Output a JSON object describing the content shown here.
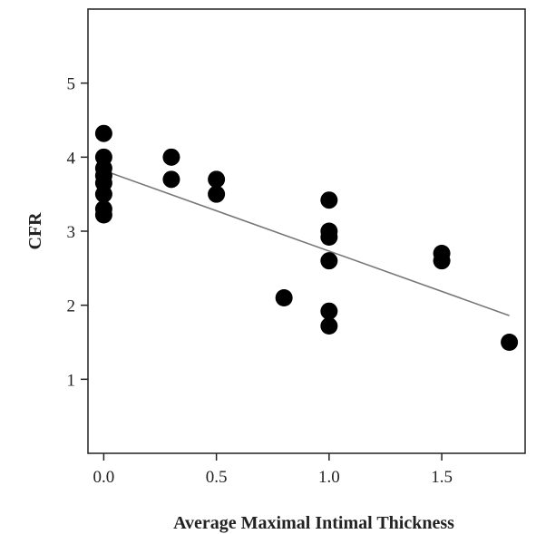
{
  "chart_data": {
    "type": "scatter",
    "title": "",
    "xlabel": "Average Maximal Intimal Thickness",
    "ylabel": "CFR",
    "xlim": [
      -0.07,
      1.87
    ],
    "ylim": [
      0,
      6
    ],
    "xticks": [
      0.0,
      0.5,
      1.0,
      1.5
    ],
    "xtick_labels": [
      "0.0",
      "0.5",
      "1.0",
      "1.5"
    ],
    "yticks": [
      1,
      2,
      3,
      4,
      5
    ],
    "ytick_labels": [
      "1",
      "2",
      "3",
      "4",
      "5"
    ],
    "grid": false,
    "legend": "none",
    "point_color": "#000000",
    "line_color": "#777777",
    "series": [
      {
        "points": [
          {
            "x": 0.0,
            "y": 4.32
          },
          {
            "x": 0.0,
            "y": 4.0
          },
          {
            "x": 0.0,
            "y": 3.85
          },
          {
            "x": 0.0,
            "y": 3.75
          },
          {
            "x": 0.0,
            "y": 3.65
          },
          {
            "x": 0.0,
            "y": 3.5
          },
          {
            "x": 0.0,
            "y": 3.3
          },
          {
            "x": 0.0,
            "y": 3.22
          },
          {
            "x": 0.3,
            "y": 4.0
          },
          {
            "x": 0.3,
            "y": 3.7
          },
          {
            "x": 0.5,
            "y": 3.7
          },
          {
            "x": 0.5,
            "y": 3.5
          },
          {
            "x": 0.8,
            "y": 2.1
          },
          {
            "x": 1.0,
            "y": 3.42
          },
          {
            "x": 1.0,
            "y": 3.0
          },
          {
            "x": 1.0,
            "y": 2.92
          },
          {
            "x": 1.0,
            "y": 2.6
          },
          {
            "x": 1.0,
            "y": 1.92
          },
          {
            "x": 1.0,
            "y": 1.72
          },
          {
            "x": 1.5,
            "y": 2.7
          },
          {
            "x": 1.5,
            "y": 2.6
          },
          {
            "x": 1.8,
            "y": 1.5
          }
        ]
      }
    ],
    "fit_line": {
      "x": [
        0.0,
        1.8
      ],
      "y": [
        3.82,
        1.86
      ]
    }
  }
}
